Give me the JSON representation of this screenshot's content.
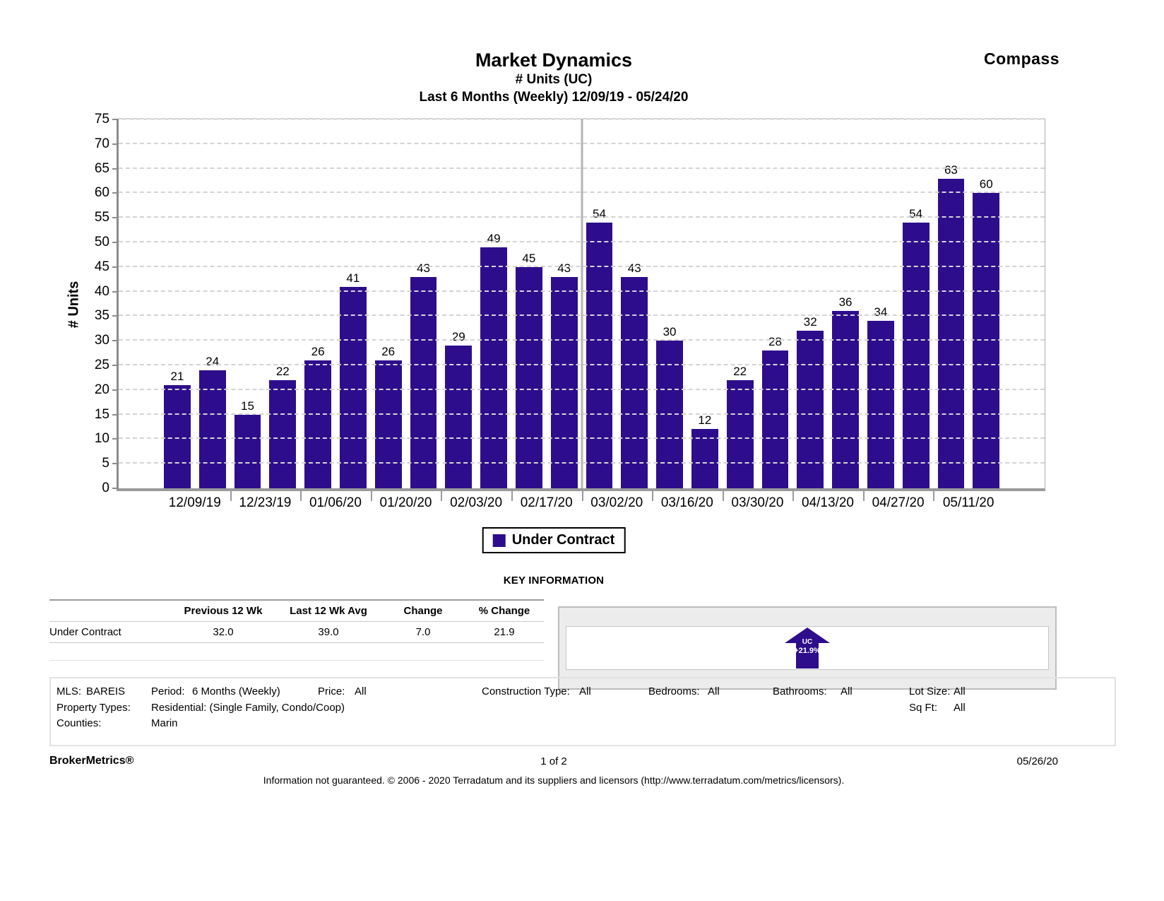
{
  "header": {
    "title": "Market Dynamics",
    "subtitle_metric": "# Units (UC)",
    "subtitle_period": "Last 6 Months (Weekly) 12/09/19 - 05/24/20",
    "brand": "Compass"
  },
  "chart_data": {
    "type": "bar",
    "title": "Market Dynamics",
    "subtitle": "# Units (UC) — Last 6 Months (Weekly) 12/09/19 - 05/24/20",
    "xlabel": "",
    "ylabel": "# Units",
    "ylim": [
      0,
      75
    ],
    "ytick_step": 5,
    "grid": "horizontal-dashed",
    "bar_color": "#2e0d8c",
    "legend_position": "bottom",
    "legend": [
      "Under Contract"
    ],
    "categories": [
      "12/09/19",
      "12/23/19",
      "01/06/20",
      "01/20/20",
      "02/03/20",
      "02/17/20",
      "03/02/20",
      "03/16/20",
      "03/30/20",
      "04/13/20",
      "04/27/20",
      "05/11/20"
    ],
    "bars_per_category": 2,
    "values": [
      21,
      24,
      15,
      22,
      26,
      41,
      26,
      43,
      29,
      49,
      45,
      43,
      54,
      43,
      30,
      12,
      22,
      28,
      32,
      36,
      34,
      54,
      63,
      60
    ],
    "separator_after_index": 11
  },
  "key_information": {
    "heading": "KEY INFORMATION",
    "table": {
      "headers": [
        "",
        "Previous 12 Wk",
        "Last 12 Wk Avg",
        "Change",
        "% Change"
      ],
      "rows": [
        [
          "Under Contract",
          "32.0",
          "39.0",
          "7.0",
          "21.9"
        ]
      ]
    },
    "indicator": {
      "label": "UC",
      "change": "+21.9%",
      "direction": "up"
    }
  },
  "filters": {
    "mls": {
      "label": "MLS:",
      "value": "BAREIS"
    },
    "period": {
      "label": "Period:",
      "value": "6 Months (Weekly)"
    },
    "price": {
      "label": "Price:",
      "value": "All"
    },
    "construction_type": {
      "label": "Construction Type:",
      "value": "All"
    },
    "bedrooms": {
      "label": "Bedrooms:",
      "value": "All"
    },
    "bathrooms": {
      "label": "Bathrooms:",
      "value": "All"
    },
    "lot_size": {
      "label": "Lot Size:",
      "value": "All"
    },
    "property_types": {
      "label": "Property Types:",
      "value": "Residential: (Single Family, Condo/Coop)"
    },
    "sq_ft": {
      "label": "Sq Ft:",
      "value": "All"
    },
    "counties": {
      "label": "Counties:",
      "value": "Marin"
    }
  },
  "footer": {
    "brand": "BrokerMetrics®",
    "page": "1 of 2",
    "date": "05/26/20",
    "disclaimer": "Information not guaranteed.  © 2006 - 2020 Terradatum and its suppliers and licensors (http://www.terradatum.com/metrics/licensors)."
  }
}
